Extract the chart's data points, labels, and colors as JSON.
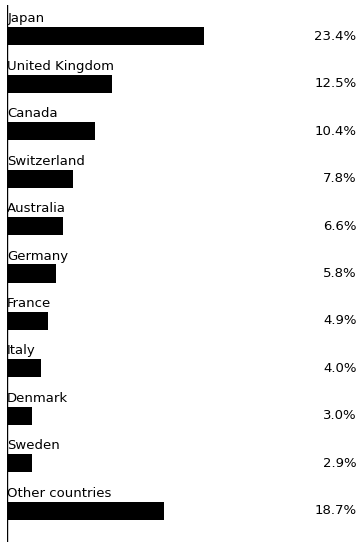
{
  "categories": [
    "Japan",
    "United Kingdom",
    "Canada",
    "Switzerland",
    "Australia",
    "Germany",
    "France",
    "Italy",
    "Denmark",
    "Sweden",
    "Other countries"
  ],
  "values": [
    23.4,
    12.5,
    10.4,
    7.8,
    6.6,
    5.8,
    4.9,
    4.0,
    3.0,
    2.9,
    18.7
  ],
  "bar_color": "#000000",
  "label_color": "#000000",
  "value_color": "#000000",
  "background_color": "#ffffff",
  "bar_height": 0.38,
  "xlim": [
    0,
    30
  ],
  "label_fontsize": 9.5,
  "value_fontsize": 9.5,
  "figsize": [
    3.6,
    5.47
  ],
  "dpi": 100
}
